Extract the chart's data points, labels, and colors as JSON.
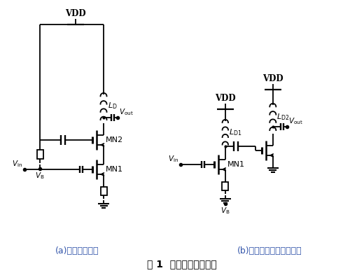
{
  "title": "图 1  经典的驱动级结构",
  "label_a": "(a)共源共栅结构",
  "label_b": "(b)级联的共源放大器结构",
  "bg_color": "#ffffff",
  "line_color": "#000000",
  "text_color": "#000000",
  "label_color": "#3355aa",
  "fig_label_color": "#000000",
  "font_path": "SimHei"
}
